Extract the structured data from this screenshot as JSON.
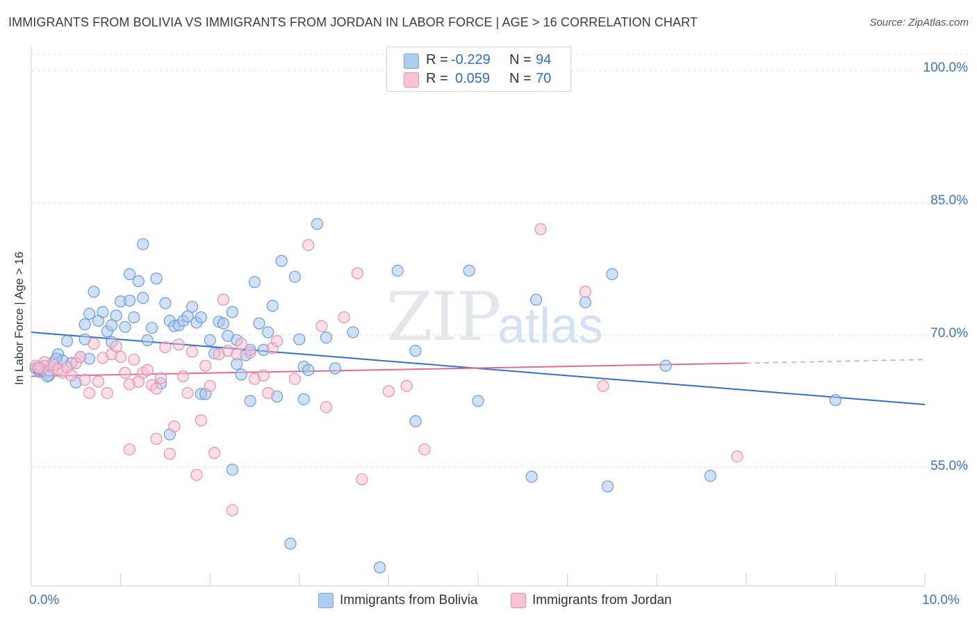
{
  "title": "IMMIGRANTS FROM BOLIVIA VS IMMIGRANTS FROM JORDAN IN LABOR FORCE | AGE > 16 CORRELATION CHART",
  "source": "Source: ZipAtlas.com",
  "watermark": {
    "zip": "ZIP",
    "atlas": "atlas"
  },
  "legend": {
    "r_label": "R =",
    "n_label": "N =",
    "rows": [
      {
        "r": "-0.229",
        "n": "94",
        "color": "#aecbf0",
        "stroke": "#7aa4dc"
      },
      {
        "r": "0.059",
        "n": "70",
        "color": "#f8c3d3",
        "stroke": "#ec92b0"
      }
    ]
  },
  "bottom_legend": [
    "Immigrants from Bolivia",
    "Immigrants from Jordan"
  ],
  "colors": {
    "bolivia_fill": "#a9c6ee",
    "bolivia_stroke": "#6b9bdb",
    "bolivia_line": "#2f6fcf",
    "jordan_fill": "#f7bfd0",
    "jordan_stroke": "#ea8eae",
    "jordan_line": "#e06a95"
  },
  "chart_data": {
    "type": "scatter",
    "title": "IMMIGRANTS FROM BOLIVIA VS IMMIGRANTS FROM JORDAN IN LABOR FORCE | AGE > 16 CORRELATION CHART",
    "xlabel": "",
    "ylabel": "In Labor Force | Age > 16",
    "xlim": [
      0,
      10
    ],
    "ylim": [
      41.5,
      102.5
    ],
    "x_tick_labels": [
      "0.0%",
      "10.0%"
    ],
    "y_ticks": [
      55,
      70,
      85,
      100
    ],
    "y_tick_labels": [
      "55.0%",
      "70.0%",
      "85.0%",
      "100.0%"
    ],
    "grid": true,
    "legend_position": "top-center",
    "series": [
      {
        "name": "Immigrants from Bolivia",
        "r": -0.229,
        "n": 94,
        "trend": {
          "x": [
            0,
            10
          ],
          "y": [
            70.3,
            62.1
          ]
        },
        "points": [
          [
            0.05,
            66.2
          ],
          [
            0.1,
            65.8
          ],
          [
            0.15,
            66.5
          ],
          [
            0.2,
            65.4
          ],
          [
            0.25,
            66.9
          ],
          [
            0.3,
            67.8
          ],
          [
            0.35,
            67.1
          ],
          [
            0.4,
            69.3
          ],
          [
            0.45,
            66.8
          ],
          [
            0.5,
            64.6
          ],
          [
            0.55,
            67.5
          ],
          [
            0.6,
            69.5
          ],
          [
            0.65,
            67.3
          ],
          [
            0.6,
            71.2
          ],
          [
            0.65,
            72.4
          ],
          [
            0.7,
            74.9
          ],
          [
            0.75,
            71.6
          ],
          [
            0.8,
            72.6
          ],
          [
            0.85,
            70.4
          ],
          [
            0.9,
            71.1
          ],
          [
            0.9,
            69.2
          ],
          [
            0.95,
            72.2
          ],
          [
            1.0,
            73.8
          ],
          [
            1.05,
            70.9
          ],
          [
            1.1,
            76.9
          ],
          [
            1.1,
            73.9
          ],
          [
            1.15,
            72.0
          ],
          [
            1.2,
            76.1
          ],
          [
            1.25,
            74.2
          ],
          [
            1.3,
            69.4
          ],
          [
            1.25,
            80.3
          ],
          [
            1.35,
            70.8
          ],
          [
            1.4,
            76.4
          ],
          [
            1.45,
            64.5
          ],
          [
            1.5,
            73.6
          ],
          [
            1.55,
            71.6
          ],
          [
            1.55,
            58.7
          ],
          [
            1.6,
            71.0
          ],
          [
            1.65,
            71.1
          ],
          [
            1.7,
            71.6
          ],
          [
            1.75,
            72.1
          ],
          [
            1.8,
            73.2
          ],
          [
            1.85,
            71.4
          ],
          [
            1.9,
            72.0
          ],
          [
            1.9,
            63.3
          ],
          [
            1.95,
            63.3
          ],
          [
            2.0,
            69.4
          ],
          [
            2.05,
            67.9
          ],
          [
            2.1,
            71.5
          ],
          [
            2.15,
            71.3
          ],
          [
            2.2,
            69.9
          ],
          [
            2.25,
            72.6
          ],
          [
            2.3,
            69.4
          ],
          [
            2.3,
            66.7
          ],
          [
            2.25,
            54.7
          ],
          [
            2.35,
            65.5
          ],
          [
            2.4,
            67.7
          ],
          [
            2.45,
            62.5
          ],
          [
            2.45,
            68.3
          ],
          [
            2.5,
            76.0
          ],
          [
            2.55,
            71.3
          ],
          [
            2.6,
            68.3
          ],
          [
            2.65,
            70.3
          ],
          [
            2.7,
            73.3
          ],
          [
            2.75,
            63.0
          ],
          [
            2.8,
            78.4
          ],
          [
            2.95,
            76.6
          ],
          [
            3.0,
            69.5
          ],
          [
            3.05,
            62.7
          ],
          [
            3.05,
            66.4
          ],
          [
            3.1,
            66.0
          ],
          [
            3.2,
            82.6
          ],
          [
            3.3,
            69.7
          ],
          [
            3.4,
            66.2
          ],
          [
            3.6,
            70.3
          ],
          [
            2.9,
            46.3
          ],
          [
            3.9,
            43.6
          ],
          [
            4.1,
            77.3
          ],
          [
            4.3,
            68.2
          ],
          [
            4.3,
            60.2
          ],
          [
            4.9,
            77.3
          ],
          [
            5.0,
            62.5
          ],
          [
            5.6,
            53.9
          ],
          [
            5.65,
            74.0
          ],
          [
            6.2,
            73.7
          ],
          [
            6.45,
            52.8
          ],
          [
            6.5,
            76.9
          ],
          [
            7.1,
            66.5
          ],
          [
            7.6,
            54.0
          ],
          [
            9.0,
            62.6
          ],
          [
            0.08,
            66.1
          ],
          [
            0.12,
            66.0
          ],
          [
            0.18,
            65.3
          ],
          [
            0.28,
            67.3
          ]
        ]
      },
      {
        "name": "Immigrants from Jordan",
        "r": 0.059,
        "n": 70,
        "trend": {
          "x": [
            0,
            8.0
          ],
          "y": [
            65.3,
            66.8
          ]
        },
        "trend_dashed": {
          "x": [
            8.0,
            10
          ],
          "y": [
            66.8,
            67.2
          ]
        },
        "points": [
          [
            0.05,
            66.5
          ],
          [
            0.1,
            66.2
          ],
          [
            0.15,
            66.9
          ],
          [
            0.2,
            66.0
          ],
          [
            0.25,
            66.6
          ],
          [
            0.3,
            66.1
          ],
          [
            0.35,
            65.7
          ],
          [
            0.4,
            66.3
          ],
          [
            0.45,
            65.4
          ],
          [
            0.5,
            66.8
          ],
          [
            0.55,
            67.5
          ],
          [
            0.6,
            64.9
          ],
          [
            0.65,
            63.4
          ],
          [
            0.7,
            69.0
          ],
          [
            0.75,
            64.7
          ],
          [
            0.8,
            67.4
          ],
          [
            0.85,
            63.4
          ],
          [
            0.9,
            67.8
          ],
          [
            0.95,
            68.7
          ],
          [
            1.0,
            67.5
          ],
          [
            1.05,
            65.7
          ],
          [
            1.1,
            57.0
          ],
          [
            1.1,
            64.4
          ],
          [
            1.15,
            67.2
          ],
          [
            1.2,
            64.7
          ],
          [
            1.25,
            65.7
          ],
          [
            1.3,
            66.0
          ],
          [
            1.35,
            64.3
          ],
          [
            1.4,
            63.9
          ],
          [
            1.4,
            58.2
          ],
          [
            1.45,
            65.1
          ],
          [
            1.5,
            68.6
          ],
          [
            1.55,
            56.5
          ],
          [
            1.6,
            59.6
          ],
          [
            1.65,
            68.9
          ],
          [
            1.7,
            65.3
          ],
          [
            1.75,
            63.4
          ],
          [
            1.8,
            68.1
          ],
          [
            1.85,
            54.1
          ],
          [
            1.9,
            60.3
          ],
          [
            1.95,
            66.5
          ],
          [
            2.0,
            64.2
          ],
          [
            2.05,
            56.6
          ],
          [
            2.1,
            67.8
          ],
          [
            2.15,
            74.0
          ],
          [
            2.2,
            68.2
          ],
          [
            2.25,
            50.1
          ],
          [
            2.3,
            67.8
          ],
          [
            2.35,
            69.0
          ],
          [
            2.45,
            68.0
          ],
          [
            2.5,
            65.0
          ],
          [
            2.6,
            65.4
          ],
          [
            2.65,
            63.4
          ],
          [
            2.7,
            68.5
          ],
          [
            2.75,
            69.3
          ],
          [
            2.95,
            65.0
          ],
          [
            3.1,
            80.2
          ],
          [
            3.25,
            71.0
          ],
          [
            3.3,
            61.8
          ],
          [
            3.5,
            72.0
          ],
          [
            3.65,
            77.0
          ],
          [
            3.7,
            53.6
          ],
          [
            4.0,
            63.6
          ],
          [
            4.2,
            64.2
          ],
          [
            4.4,
            57.0
          ],
          [
            5.7,
            82.0
          ],
          [
            6.2,
            74.9
          ],
          [
            6.4,
            64.2
          ],
          [
            7.9,
            56.2
          ],
          [
            0.08,
            66.3
          ]
        ]
      }
    ]
  }
}
